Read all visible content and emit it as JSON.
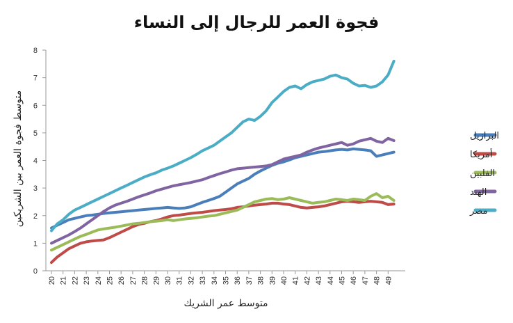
{
  "chart_data": {
    "type": "line",
    "title": "فجوة العمر للرجال إلى النساء",
    "xlabel": "متوسط عمر الشريك",
    "ylabel": "متوسط فجوة العمر بين الشريكين",
    "xlim": [
      20,
      49
    ],
    "ylim": [
      0,
      8
    ],
    "yticks": [
      0,
      1,
      2,
      3,
      4,
      5,
      6,
      7,
      8
    ],
    "x": [
      20,
      20.5,
      21,
      21.5,
      22,
      22.5,
      23,
      23.5,
      24,
      24.5,
      25,
      25.5,
      26,
      26.5,
      27,
      27.5,
      28,
      28.5,
      29,
      29.5,
      30,
      30.5,
      31,
      31.5,
      32,
      32.5,
      33,
      33.5,
      34,
      34.5,
      35,
      35.5,
      36,
      36.5,
      37,
      37.5,
      38,
      38.5,
      39,
      39.5,
      40,
      40.5,
      41,
      41.5,
      42,
      42.5,
      43,
      43.5,
      44,
      44.5,
      45,
      45.5,
      46,
      46.5,
      47,
      47.5,
      48,
      48.5,
      49,
      49.5
    ],
    "grid": false,
    "legend_position": "right",
    "series": [
      {
        "name": "البرازيل",
        "color": "#4a7ebb",
        "values": [
          1.55,
          1.65,
          1.75,
          1.85,
          1.9,
          1.95,
          2.0,
          2.02,
          2.05,
          2.08,
          2.1,
          2.12,
          2.14,
          2.16,
          2.18,
          2.2,
          2.22,
          2.24,
          2.26,
          2.28,
          2.3,
          2.28,
          2.26,
          2.28,
          2.32,
          2.4,
          2.48,
          2.55,
          2.62,
          2.7,
          2.85,
          3.0,
          3.15,
          3.25,
          3.35,
          3.5,
          3.62,
          3.72,
          3.82,
          3.9,
          3.95,
          4.02,
          4.1,
          4.15,
          4.2,
          4.25,
          4.3,
          4.32,
          4.35,
          4.38,
          4.4,
          4.38,
          4.42,
          4.4,
          4.38,
          4.35,
          4.15,
          4.2,
          4.25,
          4.3
        ]
      },
      {
        "name": "أمريكا",
        "color": "#be4b48",
        "values": [
          0.3,
          0.5,
          0.65,
          0.8,
          0.9,
          1.0,
          1.05,
          1.08,
          1.1,
          1.12,
          1.2,
          1.3,
          1.4,
          1.5,
          1.6,
          1.68,
          1.72,
          1.78,
          1.82,
          1.88,
          1.95,
          2.0,
          2.02,
          2.05,
          2.08,
          2.1,
          2.12,
          2.15,
          2.18,
          2.2,
          2.22,
          2.25,
          2.3,
          2.32,
          2.35,
          2.38,
          2.4,
          2.42,
          2.45,
          2.45,
          2.42,
          2.4,
          2.35,
          2.3,
          2.28,
          2.3,
          2.32,
          2.35,
          2.4,
          2.45,
          2.5,
          2.52,
          2.5,
          2.48,
          2.5,
          2.52,
          2.5,
          2.48,
          2.4,
          2.42
        ]
      },
      {
        "name": "الفلبين",
        "color": "#9bbb59",
        "values": [
          0.75,
          0.85,
          0.95,
          1.05,
          1.15,
          1.25,
          1.32,
          1.4,
          1.48,
          1.52,
          1.55,
          1.58,
          1.62,
          1.66,
          1.7,
          1.72,
          1.75,
          1.78,
          1.8,
          1.82,
          1.85,
          1.82,
          1.85,
          1.88,
          1.9,
          1.92,
          1.95,
          1.98,
          2.0,
          2.05,
          2.1,
          2.15,
          2.2,
          2.3,
          2.4,
          2.5,
          2.55,
          2.6,
          2.62,
          2.58,
          2.6,
          2.65,
          2.6,
          2.55,
          2.5,
          2.45,
          2.48,
          2.5,
          2.55,
          2.6,
          2.58,
          2.55,
          2.6,
          2.58,
          2.55,
          2.7,
          2.8,
          2.65,
          2.7,
          2.55
        ]
      },
      {
        "name": "الهند",
        "color": "#8064a2",
        "values": [
          1.0,
          1.1,
          1.2,
          1.3,
          1.42,
          1.55,
          1.7,
          1.85,
          2.0,
          2.15,
          2.28,
          2.38,
          2.45,
          2.52,
          2.6,
          2.68,
          2.75,
          2.82,
          2.9,
          2.96,
          3.02,
          3.08,
          3.12,
          3.16,
          3.2,
          3.25,
          3.3,
          3.38,
          3.45,
          3.52,
          3.58,
          3.65,
          3.7,
          3.72,
          3.74,
          3.76,
          3.78,
          3.8,
          3.85,
          3.95,
          4.05,
          4.1,
          4.15,
          4.2,
          4.3,
          4.38,
          4.45,
          4.5,
          4.55,
          4.6,
          4.65,
          4.55,
          4.6,
          4.7,
          4.75,
          4.8,
          4.7,
          4.65,
          4.8,
          4.72
        ]
      },
      {
        "name": "مصر",
        "color": "#4bacc6",
        "values": [
          1.45,
          1.7,
          1.85,
          2.05,
          2.2,
          2.3,
          2.4,
          2.5,
          2.6,
          2.7,
          2.8,
          2.9,
          3.0,
          3.1,
          3.2,
          3.3,
          3.4,
          3.48,
          3.55,
          3.65,
          3.72,
          3.8,
          3.9,
          4.0,
          4.1,
          4.22,
          4.35,
          4.45,
          4.55,
          4.7,
          4.85,
          5.0,
          5.2,
          5.4,
          5.5,
          5.45,
          5.6,
          5.8,
          6.1,
          6.3,
          6.5,
          6.65,
          6.7,
          6.6,
          6.75,
          6.85,
          6.9,
          6.95,
          7.05,
          7.1,
          7.0,
          6.95,
          6.8,
          6.7,
          6.72,
          6.65,
          6.7,
          6.85,
          7.1,
          7.6
        ]
      }
    ]
  }
}
